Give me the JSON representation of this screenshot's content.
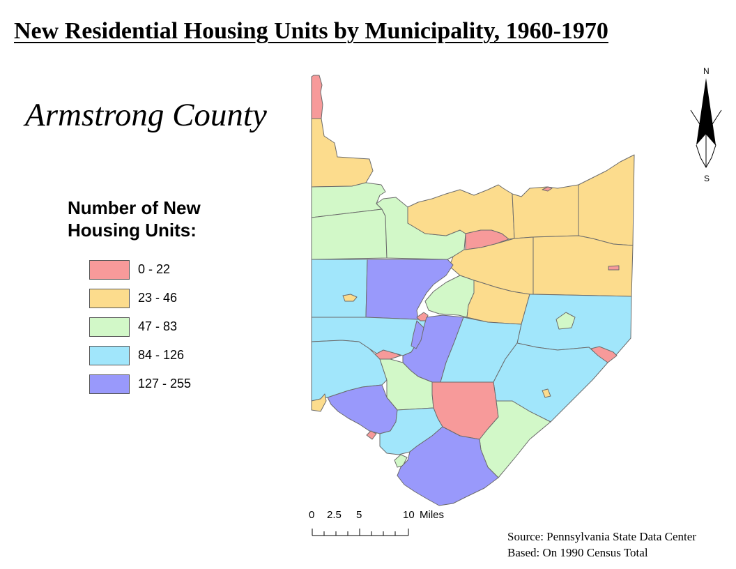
{
  "title": "New Residential Housing Units by Municipality, 1960-1970",
  "county": "Armstrong County",
  "legend": {
    "title_line1": "Number of New",
    "title_line2": "Housing Units:",
    "items": [
      {
        "label": "0 - 22",
        "color": "#f79a9a"
      },
      {
        "label": "23 - 46",
        "color": "#fcdc8d"
      },
      {
        "label": "47 - 83",
        "color": "#d2f8c8"
      },
      {
        "label": "84 - 126",
        "color": "#a1e6fb"
      },
      {
        "label": "127 - 255",
        "color": "#9999fb"
      }
    ]
  },
  "scale_bar": {
    "tick_labels": [
      "0",
      "2.5",
      "5",
      "10"
    ],
    "unit": "Miles"
  },
  "north_arrow": {
    "north": "N",
    "south": "S"
  },
  "source": {
    "line1": "Source: Pennsylvania State Data Center",
    "line2": "Based: On 1990 Census Total"
  }
}
